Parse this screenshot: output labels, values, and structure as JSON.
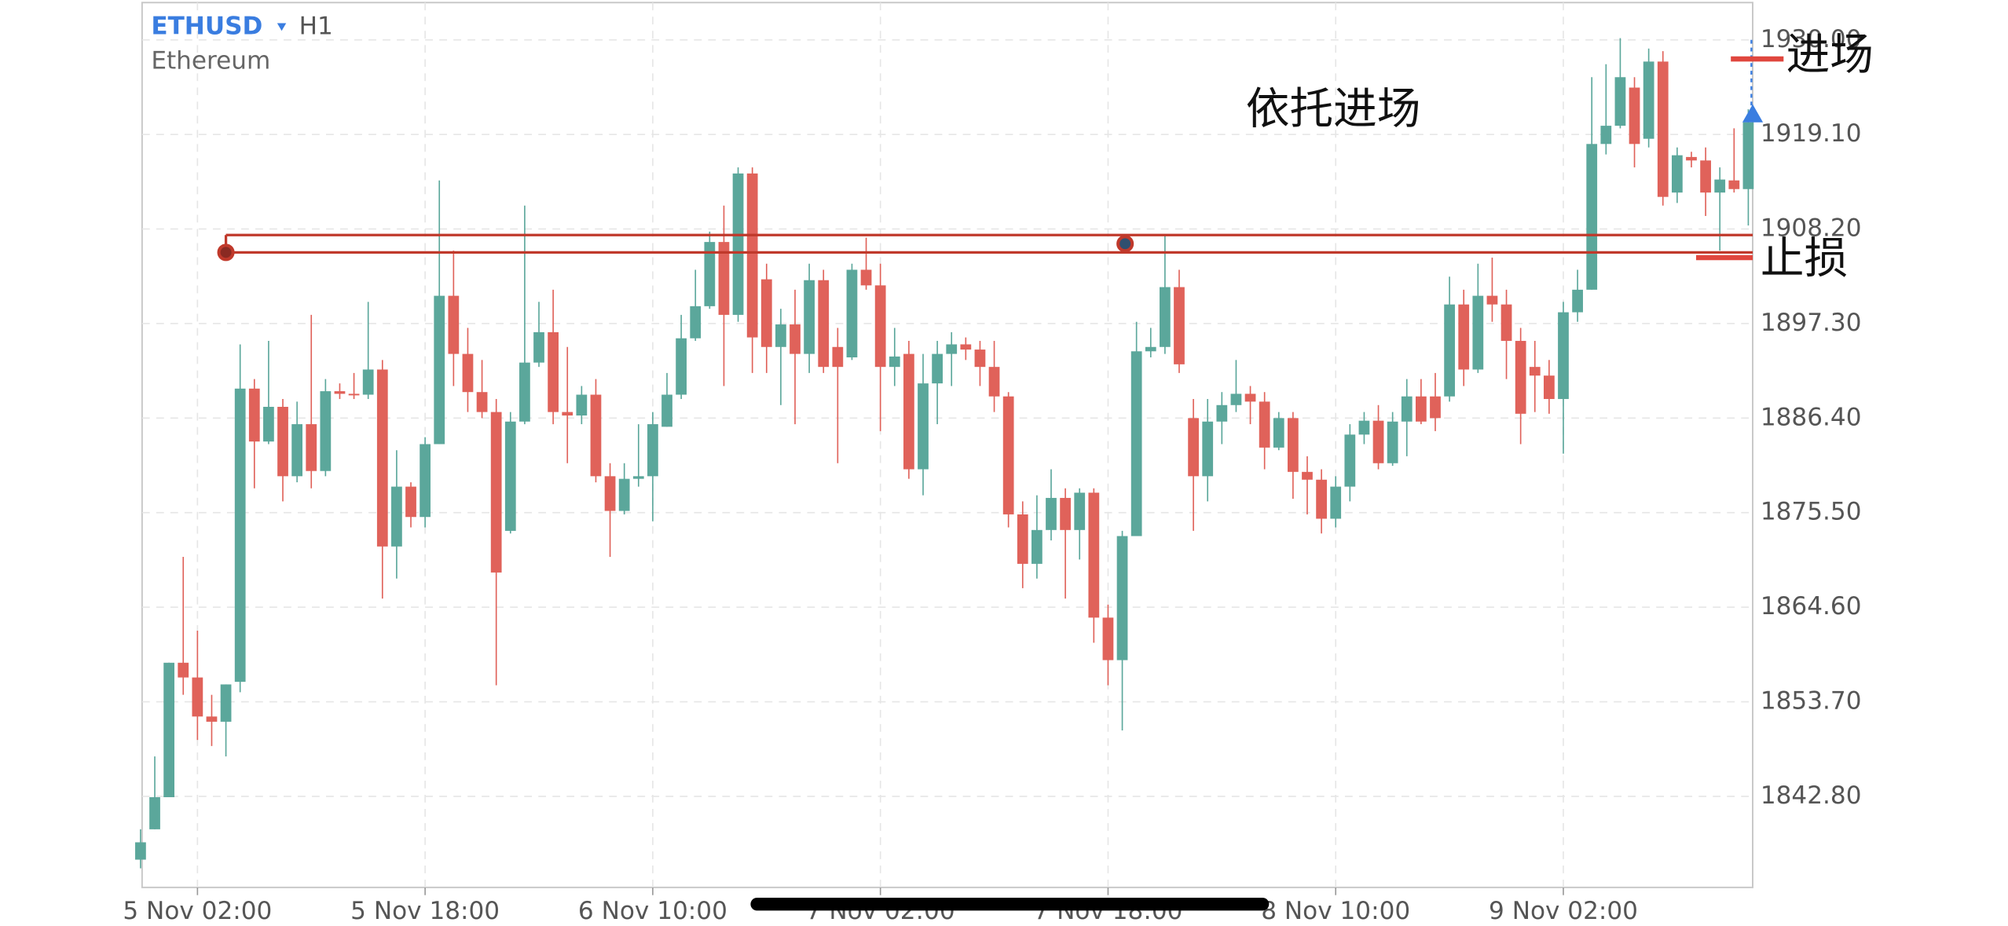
{
  "chart_data": {
    "type": "candlestick",
    "title": "ETHUSD",
    "timeframe": "H1",
    "subtitle": "Ethereum",
    "categories": [
      null,
      null,
      null,
      null,
      "5 Nov 02:00",
      null,
      null,
      null,
      null,
      null,
      null,
      null,
      null,
      null,
      null,
      null,
      null,
      null,
      null,
      null,
      "5 Nov 18:00",
      null,
      null,
      null,
      null,
      null,
      null,
      null,
      null,
      null,
      null,
      null,
      null,
      null,
      null,
      null,
      "6 Nov 10:00",
      null,
      null,
      null,
      null,
      null,
      null,
      null,
      null,
      null,
      null,
      null,
      null,
      null,
      null,
      null,
      "7 Nov 02:00",
      null,
      null,
      null,
      null,
      null,
      null,
      null,
      null,
      null,
      null,
      null,
      null,
      null,
      null,
      null,
      "7 Nov 18:00",
      null,
      null,
      null,
      null,
      null,
      null,
      null,
      null,
      null,
      null,
      null,
      null,
      null,
      null,
      null,
      "8 Nov 10:00",
      null,
      null,
      null,
      null,
      null,
      null,
      null,
      null,
      null,
      null,
      null,
      null,
      null,
      null,
      null,
      "9 Nov 02:00",
      null,
      null,
      null,
      null,
      null,
      null,
      null,
      null,
      null,
      null,
      null,
      null,
      null
    ],
    "open": [
      1835.5,
      1839.0,
      1842.7,
      1858.2,
      1856.5,
      1852.0,
      1851.4,
      1856.0,
      1889.8,
      1883.7,
      1887.7,
      1879.7,
      1885.7,
      1880.3,
      1889.5,
      1889.2,
      1889.1,
      1892.0,
      1871.6,
      1878.5,
      1875.0,
      1883.4,
      1900.5,
      1893.8,
      1889.4,
      1887.1,
      1873.4,
      1886.0,
      1892.8,
      1896.3,
      1887.1,
      1886.7,
      1889.1,
      1879.7,
      1875.7,
      1879.4,
      1879.7,
      1885.4,
      1889.1,
      1895.6,
      1899.3,
      1906.7,
      1898.3,
      1914.6,
      1902.4,
      1894.6,
      1897.2,
      1893.8,
      1902.3,
      1894.6,
      1893.4,
      1903.5,
      1901.7,
      1892.3,
      1893.8,
      1880.5,
      1890.4,
      1893.8,
      1894.9,
      1894.3,
      1892.3,
      1888.9,
      1875.3,
      1869.6,
      1873.5,
      1877.2,
      1873.5,
      1877.8,
      1863.4,
      1858.5,
      1872.8,
      1894.1,
      1894.6,
      1901.5,
      1886.4,
      1879.7,
      1886.0,
      1887.9,
      1889.2,
      1888.3,
      1883.0,
      1886.4,
      1880.2,
      1879.3,
      1874.8,
      1878.5,
      1884.5,
      1886.1,
      1881.2,
      1886.0,
      1888.9,
      1888.9,
      1888.9,
      1899.5,
      1892.0,
      1900.5,
      1899.5,
      1895.3,
      1892.3,
      1891.3,
      1888.6,
      1898.6,
      1901.2,
      1918.0,
      1920.1,
      1924.5,
      1918.6,
      1927.5,
      1912.4,
      1916.5,
      1916.1,
      1912.4,
      1913.8,
      1912.8
    ],
    "high": [
      1839.0,
      1847.4,
      1858.2,
      1870.4,
      1861.9,
      1854.5,
      1855.7,
      1894.9,
      1890.9,
      1895.3,
      1888.6,
      1888.3,
      1898.3,
      1890.9,
      1890.4,
      1891.6,
      1899.8,
      1893.1,
      1882.7,
      1879.0,
      1884.2,
      1913.8,
      1905.7,
      1896.8,
      1893.1,
      1888.6,
      1887.1,
      1910.9,
      1899.8,
      1901.2,
      1894.6,
      1890.1,
      1890.9,
      1881.2,
      1881.2,
      1885.7,
      1887.1,
      1891.6,
      1898.3,
      1903.5,
      1907.9,
      1910.9,
      1915.3,
      1915.3,
      1904.2,
      1899.0,
      1901.2,
      1904.2,
      1903.5,
      1896.8,
      1904.2,
      1907.2,
      1904.2,
      1896.8,
      1895.3,
      1893.8,
      1895.3,
      1896.3,
      1895.7,
      1895.3,
      1895.3,
      1889.4,
      1876.8,
      1877.5,
      1880.5,
      1878.3,
      1878.3,
      1878.3,
      1864.9,
      1873.4,
      1897.5,
      1896.8,
      1907.6,
      1903.5,
      1888.6,
      1888.6,
      1889.4,
      1893.1,
      1890.1,
      1889.4,
      1887.1,
      1887.1,
      1882.0,
      1880.5,
      1879.7,
      1885.7,
      1887.1,
      1887.9,
      1887.1,
      1890.9,
      1890.9,
      1891.6,
      1902.7,
      1901.2,
      1904.2,
      1904.9,
      1901.2,
      1896.8,
      1895.3,
      1893.1,
      1899.8,
      1903.5,
      1925.7,
      1927.2,
      1930.2,
      1925.7,
      1929.0,
      1928.7,
      1917.6,
      1917.1,
      1917.6,
      1915.3,
      1919.8,
      1922.0
    ],
    "low": [
      1834.5,
      1839.0,
      1842.7,
      1854.5,
      1849.3,
      1848.6,
      1847.4,
      1854.8,
      1878.3,
      1883.4,
      1876.8,
      1879.0,
      1878.3,
      1879.7,
      1888.6,
      1888.6,
      1888.6,
      1865.6,
      1867.9,
      1873.8,
      1873.8,
      1883.4,
      1890.1,
      1887.1,
      1886.4,
      1855.6,
      1873.1,
      1885.7,
      1892.3,
      1885.7,
      1881.2,
      1885.7,
      1879.0,
      1870.4,
      1875.3,
      1878.5,
      1874.5,
      1885.4,
      1888.6,
      1895.3,
      1899.0,
      1890.1,
      1897.5,
      1891.6,
      1891.6,
      1887.9,
      1885.7,
      1891.6,
      1891.6,
      1881.2,
      1893.1,
      1901.2,
      1884.9,
      1890.1,
      1879.4,
      1877.5,
      1885.7,
      1890.1,
      1893.1,
      1890.1,
      1887.1,
      1873.8,
      1866.8,
      1867.9,
      1872.3,
      1865.6,
      1870.1,
      1860.5,
      1855.6,
      1850.4,
      1872.8,
      1893.4,
      1893.8,
      1891.6,
      1873.4,
      1876.8,
      1883.4,
      1887.1,
      1885.7,
      1880.5,
      1882.7,
      1877.1,
      1875.3,
      1873.1,
      1873.8,
      1876.8,
      1883.4,
      1880.5,
      1880.9,
      1882.0,
      1885.7,
      1884.9,
      1888.3,
      1890.1,
      1891.6,
      1897.5,
      1890.9,
      1883.4,
      1887.1,
      1886.9,
      1882.3,
      1897.5,
      1901.2,
      1916.8,
      1919.8,
      1915.3,
      1917.6,
      1910.9,
      1911.2,
      1915.3,
      1909.7,
      1905.7,
      1912.4,
      1908.6
    ],
    "close": [
      1837.5,
      1842.7,
      1858.2,
      1856.5,
      1852.0,
      1851.4,
      1855.7,
      1889.8,
      1883.7,
      1887.7,
      1879.7,
      1885.7,
      1880.3,
      1889.5,
      1889.2,
      1889.1,
      1892.0,
      1871.6,
      1878.5,
      1875.0,
      1883.4,
      1900.5,
      1893.8,
      1889.4,
      1887.1,
      1868.6,
      1886.0,
      1892.8,
      1896.3,
      1887.1,
      1886.7,
      1889.1,
      1879.7,
      1875.7,
      1879.4,
      1879.7,
      1885.7,
      1889.1,
      1895.6,
      1899.3,
      1906.7,
      1898.3,
      1914.6,
      1895.7,
      1894.6,
      1897.2,
      1893.8,
      1902.3,
      1892.3,
      1892.3,
      1903.5,
      1901.7,
      1892.3,
      1893.5,
      1880.5,
      1890.4,
      1893.8,
      1894.9,
      1894.3,
      1892.3,
      1888.9,
      1875.3,
      1869.6,
      1873.5,
      1877.2,
      1873.5,
      1877.8,
      1863.4,
      1858.5,
      1872.8,
      1894.1,
      1894.6,
      1901.5,
      1892.6,
      1879.7,
      1886.0,
      1887.9,
      1889.2,
      1888.3,
      1883.0,
      1886.4,
      1880.2,
      1879.3,
      1874.8,
      1878.5,
      1884.5,
      1886.1,
      1881.2,
      1886.0,
      1888.9,
      1886.0,
      1886.4,
      1899.5,
      1892.0,
      1900.5,
      1899.5,
      1895.3,
      1886.9,
      1891.3,
      1888.6,
      1898.6,
      1901.2,
      1918.0,
      1920.1,
      1925.7,
      1918.0,
      1927.5,
      1911.9,
      1916.7,
      1916.1,
      1912.4,
      1913.9,
      1912.8,
      1920.5
    ],
    "up_color": "#5ba79b",
    "down_color": "#e0625a",
    "ylim": [
      1832.3,
      1934.3
    ],
    "yticks": [
      {
        "value": 1930,
        "label": "1930.00"
      },
      {
        "value": 1919.1,
        "label": "1919.10"
      },
      {
        "value": 1908.2,
        "label": "1908.20"
      },
      {
        "value": 1897.3,
        "label": "1897.30"
      },
      {
        "value": 1886.4,
        "label": "1886.40"
      },
      {
        "value": 1875.5,
        "label": "1875.50"
      },
      {
        "value": 1864.6,
        "label": "1864.60"
      },
      {
        "value": 1853.7,
        "label": "1853.70"
      },
      {
        "value": 1842.8,
        "label": "1842.80"
      }
    ],
    "grid": true,
    "levels": [
      {
        "value": 1907.5,
        "color": "#c0392b"
      },
      {
        "value": 1905.5,
        "color": "#c0392b"
      }
    ],
    "annotations": [
      {
        "text": "依托进场"
      },
      {
        "text": "进场",
        "value": 1927.8,
        "color": "#e0473e"
      },
      {
        "text": "止损",
        "value": 1904.9,
        "color": "#e0473e"
      }
    ]
  }
}
